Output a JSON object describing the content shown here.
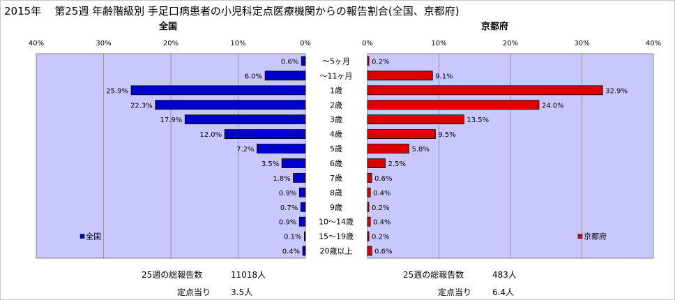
{
  "title": {
    "year": "2015年",
    "main": "第25週 年齢階級別 手足口病患者の小児科定点医療機関からの報告割合(全国、京都府)"
  },
  "colors": {
    "national": "#0000cc",
    "kyoto": "#dd0000",
    "plot_bg": "#c8c8ff",
    "grid": "#9090a0"
  },
  "chart_data": [
    {
      "type": "bar",
      "orientation": "horizontal",
      "direction": "right-to-left",
      "title": "全国",
      "legend": "全国",
      "legend_position": "bottom-left",
      "xlim": [
        0,
        40
      ],
      "ticks": [
        "40%",
        "30%",
        "20%",
        "10%",
        "0%"
      ],
      "grid": true,
      "categories": [
        "～5ヶ月",
        "～11ヶ月",
        "1歳",
        "2歳",
        "3歳",
        "4歳",
        "5歳",
        "6歳",
        "7歳",
        "8歳",
        "9歳",
        "10～14歳",
        "15～19歳",
        "20歳以上"
      ],
      "values": [
        0.6,
        6.0,
        25.9,
        22.3,
        17.9,
        12.0,
        7.2,
        3.5,
        1.8,
        0.9,
        0.7,
        0.9,
        0.1,
        0.4
      ],
      "labels": [
        "0.6%",
        "6.0%",
        "25.9%",
        "22.3%",
        "17.9%",
        "12.0%",
        "7.2%",
        "3.5%",
        "1.8%",
        "0.9%",
        "0.7%",
        "0.9%",
        "0.1%",
        "0.4%"
      ]
    },
    {
      "type": "bar",
      "orientation": "horizontal",
      "direction": "left-to-right",
      "title": "京都府",
      "legend": "京都府",
      "legend_position": "bottom-right",
      "xlim": [
        0,
        40
      ],
      "ticks": [
        "0%",
        "10%",
        "20%",
        "30%",
        "40%"
      ],
      "grid": true,
      "categories": [
        "～5ヶ月",
        "～11ヶ月",
        "1歳",
        "2歳",
        "3歳",
        "4歳",
        "5歳",
        "6歳",
        "7歳",
        "8歳",
        "9歳",
        "10～14歳",
        "15～19歳",
        "20歳以上"
      ],
      "values": [
        0.2,
        9.1,
        32.9,
        24.0,
        13.5,
        9.5,
        5.8,
        2.5,
        0.6,
        0.4,
        0.2,
        0.4,
        0.2,
        0.6
      ],
      "labels": [
        "0.2%",
        "9.1%",
        "32.9%",
        "24.0%",
        "13.5%",
        "9.5%",
        "5.8%",
        "2.5%",
        "0.6%",
        "0.4%",
        "0.2%",
        "0.4%",
        "0.2%",
        "0.6%"
      ]
    }
  ],
  "footer": {
    "national_total_label": "25週の総報告数",
    "national_total_value": "11018人",
    "national_per_label": "定点当り",
    "national_per_value": "3.5人",
    "kyoto_total_label": "25週の総報告数",
    "kyoto_total_value": "483人",
    "kyoto_per_label": "定点当り",
    "kyoto_per_value": "6.4人"
  }
}
